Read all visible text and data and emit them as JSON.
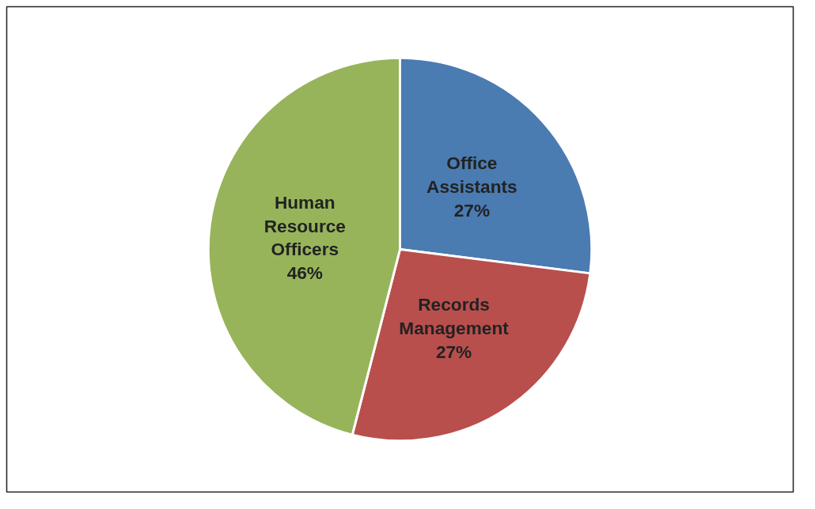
{
  "chart_data": {
    "type": "pie",
    "categories": [
      "Office Assistants",
      "Records Management",
      "Human Resource Officers"
    ],
    "values": [
      27,
      27,
      46
    ],
    "colors": [
      "#4a7bb1",
      "#b84f4c",
      "#97b45a"
    ],
    "value_labels": [
      "27%",
      "27%",
      "46%"
    ]
  }
}
